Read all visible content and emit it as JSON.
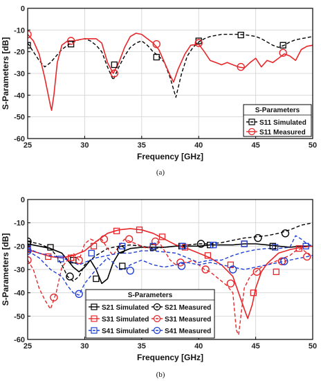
{
  "chart_data": [
    {
      "type": "line",
      "caption": "(a)",
      "xlabel": "Frequency [GHz]",
      "ylabel": "S-Parameters [dB]",
      "xlim": [
        25,
        50
      ],
      "ylim": [
        -60,
        0
      ],
      "xticks": [
        25,
        30,
        35,
        40,
        45,
        50
      ],
      "yticks": [
        0,
        -10,
        -20,
        -30,
        -40,
        -50,
        -60
      ],
      "grid": true,
      "legend_title": "S-Parameters",
      "legend_position": "lower-right",
      "series": [
        {
          "name": "S11 Simulated",
          "color": "#000000",
          "dash": "dashed",
          "marker": "square",
          "x": [
            25,
            25.5,
            26,
            26.5,
            27,
            27.5,
            28,
            28.5,
            29,
            29.5,
            30,
            30.5,
            31,
            31.5,
            32,
            32.5,
            33,
            33.5,
            34,
            34.5,
            35,
            35.5,
            36,
            36.5,
            37,
            37.5,
            38,
            38.5,
            39,
            39.5,
            40,
            40.5,
            41,
            41.5,
            42,
            42.5,
            43,
            43.5,
            44,
            44.5,
            45,
            45.5,
            46,
            46.5,
            47,
            47.5,
            48,
            48.5,
            49,
            49.5,
            50
          ],
          "y": [
            -16,
            -20,
            -24,
            -27,
            -25,
            -22,
            -19,
            -17,
            -15.5,
            -14.5,
            -14,
            -15,
            -17,
            -20,
            -27,
            -33,
            -27,
            -22,
            -18,
            -16,
            -15,
            -17,
            -20,
            -22,
            -25,
            -32,
            -41,
            -30,
            -22,
            -18,
            -15.5,
            -14,
            -13,
            -12.5,
            -12,
            -12,
            -12,
            -12,
            -12.2,
            -12.5,
            -13,
            -14,
            -15.5,
            -17,
            -18,
            -17,
            -15.5,
            -14.5,
            -14,
            -13.5,
            -13
          ],
          "marker_x": [
            25,
            28.8,
            32.6,
            36.3,
            40,
            43.7,
            47.4
          ],
          "marker_y": [
            -17,
            -16.5,
            -26,
            -22.5,
            -15,
            -12.3,
            -17
          ]
        },
        {
          "name": "S11 Measured",
          "color": "#e8262a",
          "dash": "solid",
          "marker": "circle",
          "x": [
            25,
            25.5,
            26,
            26.5,
            27,
            27.1,
            27.3,
            27.6,
            28,
            28.5,
            29,
            29.5,
            30,
            30.5,
            31,
            31.5,
            32,
            32.5,
            33,
            33.5,
            34,
            34.5,
            35,
            35.5,
            36,
            36.5,
            37,
            37.5,
            37.8,
            38.2,
            38.8,
            39.3,
            40,
            40.5,
            41,
            41.5,
            42,
            42.5,
            43,
            43.5,
            44,
            44.5,
            45,
            45.5,
            46,
            46.5,
            47,
            47.5,
            48,
            48.5,
            49,
            49.5,
            50
          ],
          "y": [
            -12,
            -15,
            -21,
            -32,
            -45,
            -47,
            -40,
            -25,
            -17,
            -15,
            -15,
            -14.5,
            -14,
            -14,
            -14,
            -16,
            -25,
            -30,
            -25,
            -18,
            -13,
            -11.5,
            -12,
            -14,
            -16,
            -19,
            -25,
            -31,
            -34,
            -28,
            -21,
            -17,
            -16.5,
            -20,
            -24,
            -25,
            -26,
            -25,
            -26,
            -27,
            -27.5,
            -25,
            -23,
            -27,
            -24,
            -25,
            -23,
            -21,
            -22,
            -24,
            -19,
            -17.5,
            -17
          ],
          "marker_x": [
            25,
            28.8,
            32.6,
            36.3,
            40,
            43.7,
            47.4
          ],
          "marker_y": [
            -12,
            -15,
            -30,
            -16.5,
            -16,
            -27,
            -20.5
          ]
        }
      ]
    },
    {
      "type": "line",
      "caption": "(b)",
      "xlabel": "Frequency [GHz]",
      "ylabel": "S-Parameters [dB]",
      "xlim": [
        25,
        50
      ],
      "ylim": [
        -60,
        0
      ],
      "xticks": [
        25,
        30,
        35,
        40,
        45,
        50
      ],
      "yticks": [
        0,
        -10,
        -20,
        -30,
        -40,
        -50,
        -60
      ],
      "grid": true,
      "legend_title": "S-Parameters",
      "legend_position": "lower-left",
      "series": [
        {
          "name": "S21 Simulated",
          "color": "#000000",
          "dash": "solid",
          "marker": "square",
          "x": [
            25,
            26,
            27,
            28,
            28.5,
            29,
            29.5,
            30,
            30.5,
            31,
            31.5,
            32,
            32.5,
            33,
            34,
            35,
            36,
            37,
            38,
            39,
            40,
            41,
            42,
            43,
            44,
            45,
            46,
            47,
            48,
            49,
            50
          ],
          "y": [
            -19,
            -20,
            -21,
            -23,
            -26,
            -29,
            -31,
            -29,
            -26,
            -30,
            -36,
            -34,
            -27,
            -23,
            -21,
            -20.5,
            -20.5,
            -20.5,
            -20,
            -20,
            -20,
            -19.5,
            -19.5,
            -19.5,
            -19,
            -19,
            -19.5,
            -20,
            -20.5,
            -20,
            -20
          ],
          "marker_x": [
            25,
            27,
            29,
            31,
            33.3,
            36,
            38.5,
            41,
            44,
            46.5
          ],
          "marker_y": [
            -19,
            -20.5,
            -26,
            -34,
            -28.5,
            -20.5,
            -20,
            -19.5,
            -19,
            -20
          ]
        },
        {
          "name": "S21 Measured",
          "color": "#000000",
          "dash": "dashed",
          "marker": "circle",
          "x": [
            25,
            26,
            27,
            27.5,
            28,
            28.5,
            29,
            29.5,
            30,
            31,
            32,
            33,
            34,
            35,
            36,
            37,
            38,
            39,
            40,
            41,
            42,
            43,
            44,
            45,
            46,
            47,
            48,
            49,
            50
          ],
          "y": [
            -18,
            -19,
            -21,
            -24,
            -28,
            -33,
            -35,
            -33,
            -28,
            -24,
            -21,
            -20,
            -19.5,
            -20,
            -21,
            -20.5,
            -20,
            -19.5,
            -19,
            -19,
            -18.5,
            -17.5,
            -16.5,
            -16,
            -15.5,
            -14.5,
            -13,
            -11,
            -10
          ],
          "marker_x": [
            25,
            28.7,
            33.2,
            40.2,
            45.2,
            47.6
          ],
          "marker_y": [
            -18,
            -33,
            -21.5,
            -19,
            -16.5,
            -14.5
          ]
        },
        {
          "name": "S31 Simulated",
          "color": "#e8262a",
          "dash": "solid",
          "marker": "square",
          "x": [
            25,
            26,
            27,
            28,
            29,
            30,
            31,
            32,
            33,
            34,
            35,
            36,
            37,
            38,
            39,
            40,
            41,
            42,
            43,
            43.5,
            44,
            44.3,
            44.7,
            45,
            45.5,
            46,
            47,
            48,
            49,
            50
          ],
          "y": [
            -21.5,
            -23,
            -24.5,
            -25,
            -24,
            -22,
            -18,
            -14.5,
            -13,
            -12.5,
            -13,
            -14.5,
            -17,
            -19.5,
            -21,
            -23,
            -25,
            -28,
            -33,
            -40,
            -47,
            -51,
            -45,
            -38,
            -31,
            -27.5,
            -23,
            -21.5,
            -20.5,
            -20
          ],
          "marker_x": [
            25,
            26.8,
            28.8,
            30.8,
            32.8,
            34.8,
            36.8,
            38.8,
            40.8,
            42.8,
            44.8,
            46.8,
            48.8
          ],
          "marker_y": [
            -21.5,
            -24.5,
            -25,
            -20,
            -13.5,
            -13,
            -16,
            -20.5,
            -24,
            -28,
            -40,
            -31,
            -21
          ]
        },
        {
          "name": "S31 Measured",
          "color": "#e8262a",
          "dash": "dashed",
          "marker": "circle",
          "x": [
            25,
            25.5,
            26,
            26.5,
            27,
            27.5,
            28,
            28.5,
            29,
            29.5,
            30,
            30.5,
            31,
            31.5,
            32,
            32.5,
            33,
            33.5,
            34,
            34.5,
            35,
            35.5,
            36,
            36.5,
            37,
            37.5,
            38,
            38.5,
            39,
            39.5,
            40,
            40.5,
            41,
            41.5,
            42,
            42.5,
            43,
            43.3,
            43.5,
            43.7,
            44,
            44.5,
            45,
            45.5,
            46,
            46.5,
            47,
            47.5,
            48,
            48.5,
            49,
            49.5,
            50
          ],
          "y": [
            -26,
            -30,
            -38,
            -43,
            -47,
            -40,
            -29,
            -26,
            -23,
            -26,
            -19,
            -17,
            -18,
            -17,
            -21,
            -24,
            -20,
            -17,
            -18,
            -19,
            -20,
            -21,
            -19,
            -18,
            -22,
            -26,
            -28,
            -27,
            -27,
            -26,
            -28,
            -30,
            -31,
            -33,
            -35,
            -37,
            -40,
            -56,
            -58,
            -50,
            -38,
            -33,
            -31,
            -29,
            -28,
            -27,
            -26,
            -25,
            -24,
            -22,
            -21,
            -23,
            -25
          ],
          "marker_x": [
            25,
            27.3,
            29.5,
            31.7,
            33.9,
            36.2,
            38.4,
            40.6,
            42.8,
            45.1,
            47.3,
            49.5
          ],
          "marker_y": [
            -26,
            -42,
            -26,
            -17,
            -17,
            -18,
            -27,
            -30,
            -36,
            -31,
            -26.5,
            -24.5
          ]
        },
        {
          "name": "S41 Simulated",
          "color": "#1f3fd6",
          "dash": "dashed",
          "marker": "square",
          "x": [
            25,
            26,
            27,
            27.5,
            28,
            28.5,
            29,
            29.5,
            30,
            30.5,
            31,
            32,
            33,
            34,
            35,
            36,
            37,
            38,
            39,
            40,
            41,
            42,
            43,
            44,
            45,
            46,
            47,
            48,
            48.5,
            49,
            49.5,
            50
          ],
          "y": [
            -21,
            -23,
            -24,
            -24.5,
            -25,
            -26,
            -27,
            -28,
            -27,
            -26,
            -25,
            -24,
            -23,
            -23,
            -22,
            -22,
            -22.5,
            -23,
            -25,
            -27,
            -26,
            -26,
            -24,
            -22.5,
            -21.5,
            -21,
            -21,
            -20.5,
            -15.5,
            -17,
            -19,
            -20
          ],
          "marker_x": [
            25,
            27.9,
            30.6,
            33.3,
            36,
            38.6,
            41.3,
            44,
            46.7,
            49.4
          ],
          "marker_y": [
            -21,
            -25.5,
            -23,
            -20,
            -20,
            -20,
            -19.5,
            -19,
            -20.5,
            -20
          ]
        },
        {
          "name": "S41 Measured",
          "color": "#1f3fd6",
          "dash": "dashed",
          "marker": "circle",
          "x": [
            25,
            26,
            27,
            28,
            28.5,
            29,
            29.5,
            30,
            31,
            32,
            32.5,
            33,
            33.5,
            34,
            35,
            36,
            37,
            38,
            39,
            40,
            41,
            42,
            43,
            44,
            45,
            46,
            47,
            48,
            49,
            50
          ],
          "y": [
            -22,
            -25,
            -30,
            -33,
            -37,
            -40,
            -41,
            -36,
            -30,
            -25,
            -27,
            -30,
            -30,
            -28,
            -26,
            -28,
            -29,
            -28,
            -27,
            -28,
            -27,
            -28,
            -29,
            -30,
            -29,
            -28,
            -27,
            -26,
            -25,
            -24
          ],
          "marker_x": [
            25,
            29.5,
            34,
            38.5,
            43,
            47.5
          ],
          "marker_y": [
            -22,
            -40.5,
            -30.5,
            -28.5,
            -30,
            -26.5
          ]
        }
      ]
    }
  ]
}
